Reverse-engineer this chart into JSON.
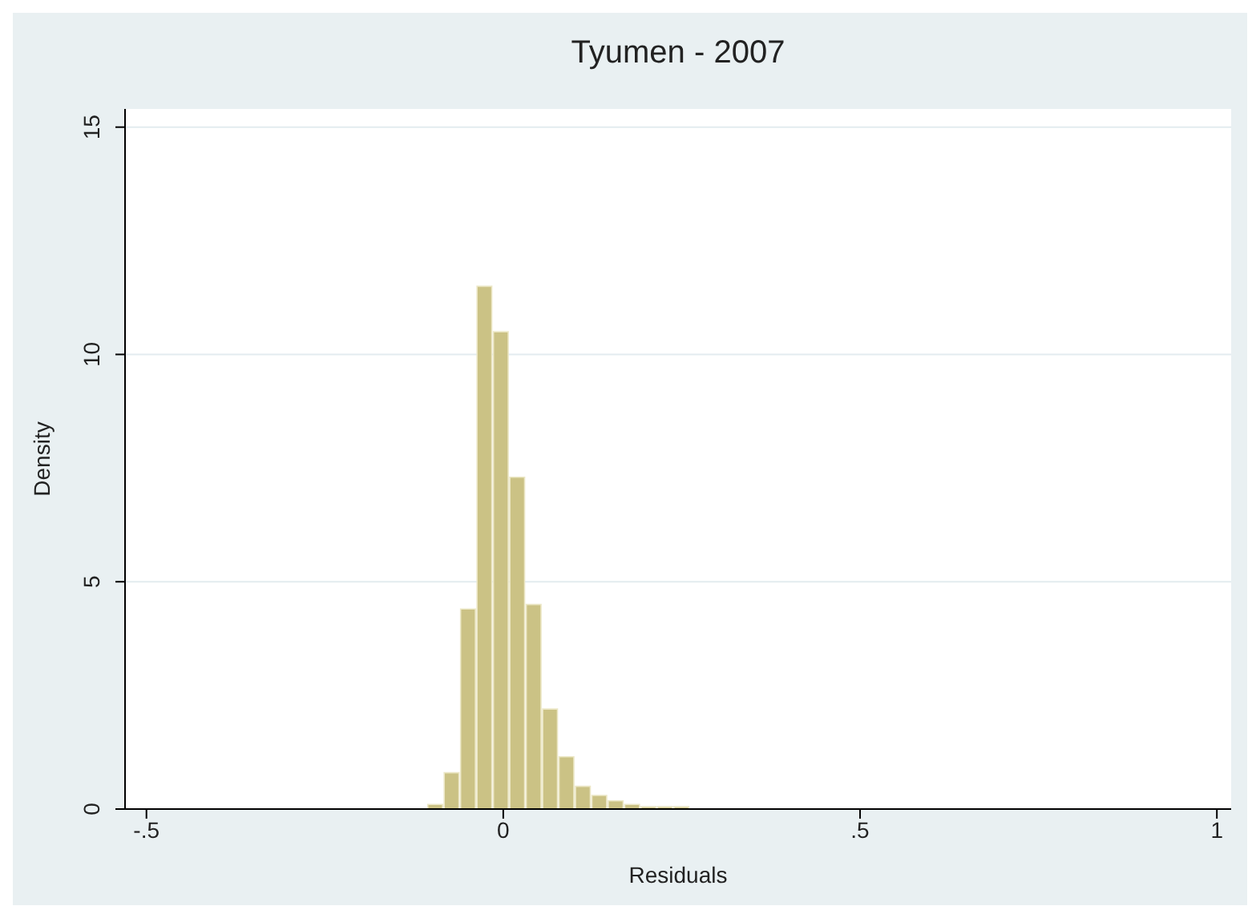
{
  "chart_data": {
    "type": "histogram",
    "title": "Tyumen - 2007",
    "xlabel": "Residuals",
    "ylabel": "Density",
    "bins": [
      -0.108,
      -0.085,
      -0.062,
      -0.039,
      -0.016,
      0.007,
      0.03,
      0.053,
      0.076,
      0.099,
      0.122,
      0.145,
      0.168,
      0.191,
      0.214,
      0.237,
      0.26
    ],
    "values": [
      0.1,
      0.8,
      4.4,
      11.5,
      10.5,
      7.3,
      4.5,
      2.2,
      1.15,
      0.5,
      0.3,
      0.18,
      0.1,
      0.05,
      0.05,
      0.05
    ],
    "color": "#cbc285",
    "xlim": [
      -0.53,
      1.02
    ],
    "xticks": [
      {
        "value": -0.5,
        "label": "-.5"
      },
      0,
      {
        "value": 0.5,
        "label": ".5"
      },
      1
    ],
    "ylim": [
      0,
      15.4
    ],
    "yticks": [
      0,
      5,
      10,
      15
    ],
    "grid": "y"
  }
}
